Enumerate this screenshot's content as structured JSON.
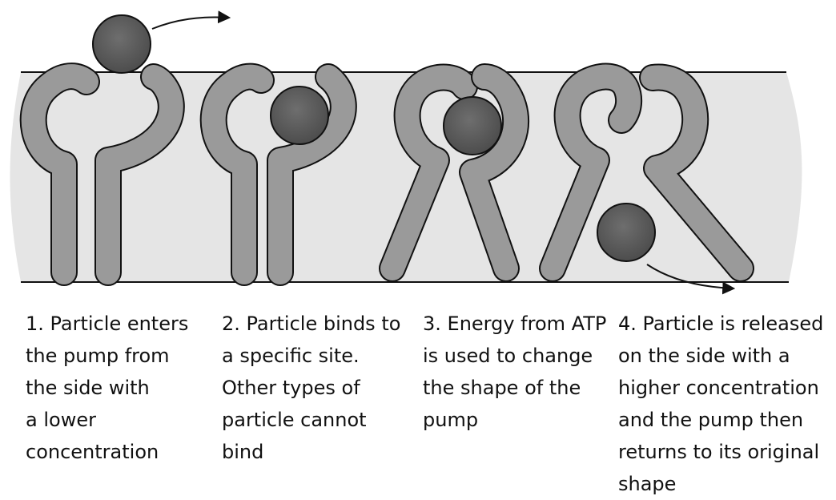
{
  "colors": {
    "membrane": "#e5e5e5",
    "protein": "#9a9a9a",
    "particle": "#5a5a5a",
    "outline": "#111111"
  },
  "steps": [
    {
      "lines": [
        "1. Particle enters",
        "the pump from",
        "the side with",
        "a lower",
        "concentration"
      ]
    },
    {
      "lines": [
        "2. Particle binds to",
        "a specific site.",
        "Other types of",
        "particle cannot",
        "bind"
      ]
    },
    {
      "lines": [
        "3. Energy from ATP",
        "is used to change",
        "the shape of the",
        "pump"
      ]
    },
    {
      "lines": [
        "4. Particle is released",
        "on the side with a",
        "higher concentration",
        "and the pump then",
        "returns to its original",
        "shape"
      ]
    }
  ]
}
